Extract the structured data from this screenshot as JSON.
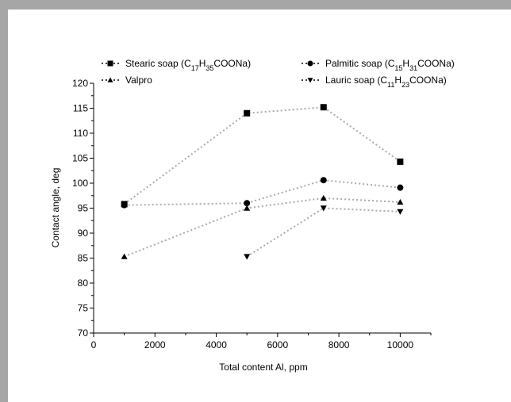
{
  "chart_data": {
    "type": "line",
    "xlabel": "Total content Al, ppm",
    "ylabel": "Contact angle, deg",
    "xlim": [
      0,
      11000
    ],
    "ylim": [
      70,
      120
    ],
    "xticks": [
      0,
      2000,
      4000,
      6000,
      8000,
      10000
    ],
    "yticks": [
      70,
      75,
      80,
      85,
      90,
      95,
      100,
      105,
      110,
      115,
      120
    ],
    "grid": false,
    "legend_position": "top",
    "series": [
      {
        "name": "Stearic soap",
        "formula": {
          "base": "C",
          "sub1": "17",
          "mid": "H",
          "sub2": "35",
          "tail": "COONa"
        },
        "marker": "square",
        "x": [
          1000,
          5000,
          7500,
          10000
        ],
        "y": [
          95.8,
          114.0,
          115.2,
          104.3
        ]
      },
      {
        "name": "Palmitic soap",
        "formula": {
          "base": "C",
          "sub1": "15",
          "mid": "H",
          "sub2": "31",
          "tail": "COONa"
        },
        "marker": "circle",
        "x": [
          1000,
          5000,
          7500,
          10000
        ],
        "y": [
          95.6,
          96.0,
          100.6,
          99.1
        ]
      },
      {
        "name": "Valpro",
        "formula": null,
        "marker": "triangle-up",
        "x": [
          1000,
          5000,
          7500,
          10000
        ],
        "y": [
          85.3,
          95.0,
          97.0,
          96.2
        ]
      },
      {
        "name": "Lauric soap",
        "formula": {
          "base": "C",
          "sub1": "11",
          "mid": "H",
          "sub2": "23",
          "tail": "COONa"
        },
        "marker": "triangle-down",
        "x": [
          5000,
          7500,
          10000
        ],
        "y": [
          85.3,
          95.0,
          94.3
        ]
      }
    ]
  }
}
